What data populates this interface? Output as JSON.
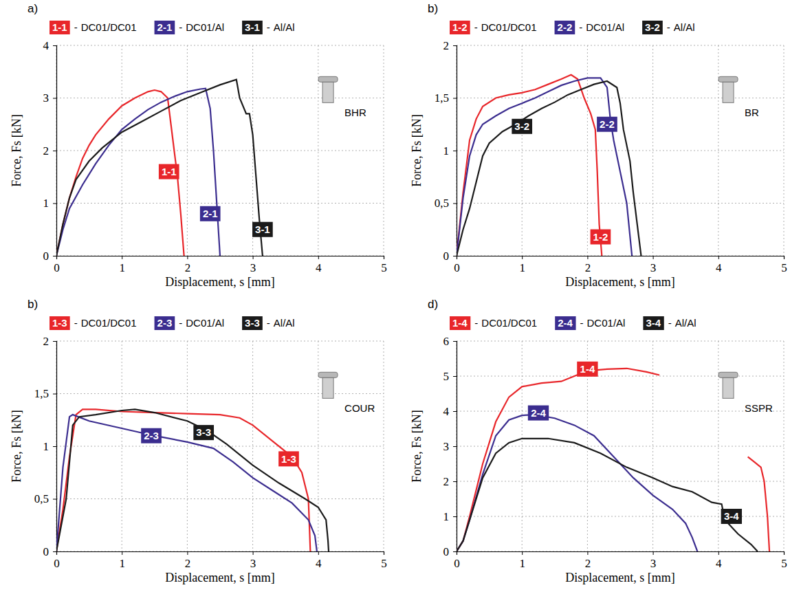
{
  "chart_data": [
    {
      "type": "line",
      "panel": "a)",
      "rivet": "BHR",
      "x_label": "Displacement, s [mm]",
      "y_label": "Force, Fs [kN]",
      "legend": "top",
      "legend_separator": "-",
      "grid": true,
      "xlim": [
        0,
        5
      ],
      "xticks": [
        0,
        1,
        2,
        3,
        4,
        5
      ],
      "ylim": [
        0,
        4
      ],
      "yticks": [
        0,
        1,
        2,
        3,
        4
      ],
      "series": [
        {
          "label": "1-1",
          "name": "DC01/DC01",
          "color": "#e8262a",
          "label_x": 1.72,
          "label_y": 1.6,
          "x": [
            0,
            0.1,
            0.2,
            0.3,
            0.4,
            0.5,
            0.6,
            0.8,
            1.0,
            1.2,
            1.4,
            1.5,
            1.6,
            1.7,
            1.75,
            1.8,
            1.85,
            1.9,
            1.95
          ],
          "values": [
            0,
            0.6,
            1.1,
            1.5,
            1.85,
            2.1,
            2.3,
            2.6,
            2.85,
            3.0,
            3.12,
            3.15,
            3.12,
            3.0,
            2.5,
            2.0,
            1.5,
            0.8,
            0
          ]
        },
        {
          "label": "2-1",
          "name": "DC01/Al",
          "color": "#3b2d8f",
          "label_x": 2.35,
          "label_y": 0.8,
          "x": [
            0,
            0.1,
            0.2,
            0.4,
            0.6,
            0.8,
            1.0,
            1.2,
            1.4,
            1.6,
            1.8,
            2.0,
            2.2,
            2.28,
            2.35,
            2.4,
            2.45,
            2.5
          ],
          "values": [
            0,
            0.5,
            0.9,
            1.35,
            1.75,
            2.1,
            2.4,
            2.6,
            2.78,
            2.92,
            3.03,
            3.12,
            3.17,
            3.18,
            2.8,
            2.0,
            1.0,
            0
          ]
        },
        {
          "label": "3-1",
          "name": "Al/Al",
          "color": "#1a1a1a",
          "label_x": 3.15,
          "label_y": 0.5,
          "x": [
            0,
            0.1,
            0.2,
            0.3,
            0.5,
            0.7,
            1.0,
            1.3,
            1.6,
            1.9,
            2.2,
            2.5,
            2.75,
            2.8,
            2.9,
            2.95,
            3.0,
            3.05,
            3.1,
            3.15
          ],
          "values": [
            0,
            0.6,
            1.1,
            1.45,
            1.8,
            2.05,
            2.35,
            2.55,
            2.75,
            2.95,
            3.1,
            3.25,
            3.35,
            3.0,
            2.7,
            2.7,
            2.3,
            1.5,
            0.7,
            0
          ]
        }
      ]
    },
    {
      "type": "line",
      "panel": "b)",
      "rivet": "BR",
      "x_label": "Displacement, s [mm]",
      "y_label": "Force, Fs [kN]",
      "legend": "top",
      "legend_separator": "-",
      "grid": true,
      "xlim": [
        0,
        5
      ],
      "xticks": [
        0,
        1,
        2,
        3,
        4,
        5
      ],
      "ylim": [
        0,
        2
      ],
      "yticks": [
        0,
        {
          "value": 0.5,
          "label": "0,5"
        },
        1,
        {
          "value": 1.5,
          "label": "1,5"
        },
        2
      ],
      "series": [
        {
          "label": "1-2",
          "name": "DC01/DC01",
          "color": "#e8262a",
          "label_x": 2.2,
          "label_y": 0.18,
          "x": [
            0,
            0.1,
            0.2,
            0.3,
            0.4,
            0.6,
            0.8,
            1.0,
            1.2,
            1.4,
            1.6,
            1.75,
            1.85,
            1.95,
            2.05,
            2.12,
            2.15,
            2.18,
            2.22
          ],
          "values": [
            0,
            0.6,
            1.1,
            1.3,
            1.42,
            1.5,
            1.53,
            1.55,
            1.58,
            1.63,
            1.68,
            1.72,
            1.68,
            1.5,
            1.35,
            1.2,
            0.8,
            0.3,
            0
          ]
        },
        {
          "label": "2-2",
          "name": "DC01/Al",
          "color": "#3b2d8f",
          "label_x": 2.3,
          "label_y": 1.25,
          "x": [
            0,
            0.1,
            0.2,
            0.3,
            0.4,
            0.6,
            0.8,
            1.0,
            1.2,
            1.4,
            1.6,
            1.8,
            2.0,
            2.2,
            2.3,
            2.35,
            2.4,
            2.5,
            2.6,
            2.68
          ],
          "values": [
            0,
            0.55,
            0.95,
            1.15,
            1.25,
            1.33,
            1.4,
            1.45,
            1.5,
            1.56,
            1.62,
            1.66,
            1.69,
            1.69,
            1.6,
            1.3,
            1.1,
            0.8,
            0.5,
            0
          ]
        },
        {
          "label": "3-2",
          "name": "Al/Al",
          "color": "#1a1a1a",
          "label_x": 1.0,
          "label_y": 1.23,
          "x": [
            0,
            0.1,
            0.2,
            0.3,
            0.4,
            0.5,
            0.7,
            0.9,
            1.1,
            1.3,
            1.5,
            1.7,
            1.9,
            2.1,
            2.3,
            2.45,
            2.5,
            2.55,
            2.65,
            2.7,
            2.78,
            2.82
          ],
          "values": [
            0,
            0.25,
            0.45,
            0.7,
            0.95,
            1.07,
            1.18,
            1.25,
            1.33,
            1.4,
            1.46,
            1.53,
            1.58,
            1.63,
            1.66,
            1.6,
            1.45,
            1.2,
            0.9,
            0.6,
            0.2,
            0
          ]
        }
      ]
    },
    {
      "type": "line",
      "panel": "b)",
      "rivet": "COUR",
      "x_label": "Displacement, s [mm]",
      "y_label": "Force, Fs [kN]",
      "legend": "top",
      "legend_separator": "-",
      "grid": true,
      "xlim": [
        0,
        5
      ],
      "xticks": [
        0,
        1,
        2,
        3,
        4,
        5
      ],
      "ylim": [
        0,
        2
      ],
      "yticks": [
        0,
        {
          "value": 0.5,
          "label": "0,5"
        },
        1,
        {
          "value": 1.5,
          "label": "1,5"
        },
        2
      ],
      "series": [
        {
          "label": "1-3",
          "name": "DC01/DC01",
          "color": "#e8262a",
          "label_x": 3.55,
          "label_y": 0.88,
          "x": [
            0,
            0.1,
            0.2,
            0.3,
            0.4,
            0.6,
            1.0,
            1.5,
            2.0,
            2.5,
            2.8,
            3.0,
            3.3,
            3.6,
            3.75,
            3.85,
            3.88
          ],
          "values": [
            0,
            0.4,
            0.9,
            1.3,
            1.35,
            1.35,
            1.33,
            1.32,
            1.31,
            1.3,
            1.27,
            1.2,
            1.05,
            0.9,
            0.75,
            0.5,
            0
          ]
        },
        {
          "label": "2-3",
          "name": "DC01/Al",
          "color": "#3b2d8f",
          "label_x": 1.45,
          "label_y": 1.1,
          "x": [
            0,
            0.1,
            0.2,
            0.25,
            0.5,
            1.0,
            1.5,
            2.0,
            2.4,
            2.7,
            3.0,
            3.3,
            3.6,
            3.85,
            3.95,
            3.98
          ],
          "values": [
            0,
            0.8,
            1.28,
            1.3,
            1.24,
            1.17,
            1.1,
            1.04,
            0.98,
            0.85,
            0.7,
            0.58,
            0.46,
            0.3,
            0.15,
            0
          ]
        },
        {
          "label": "3-3",
          "name": "Al/Al",
          "color": "#1a1a1a",
          "label_x": 2.25,
          "label_y": 1.13,
          "x": [
            0,
            0.15,
            0.25,
            0.35,
            0.6,
            1.0,
            1.2,
            1.5,
            2.0,
            2.3,
            2.6,
            3.0,
            3.4,
            3.8,
            4.0,
            4.12,
            4.15,
            4.16
          ],
          "values": [
            0,
            0.5,
            1.2,
            1.28,
            1.3,
            1.34,
            1.35,
            1.32,
            1.24,
            1.15,
            1.02,
            0.82,
            0.65,
            0.5,
            0.42,
            0.3,
            0.1,
            0
          ]
        }
      ]
    },
    {
      "type": "line",
      "panel": "d)",
      "rivet": "SSPR",
      "x_label": "Displacement, s [mm]",
      "y_label": "Force, Fs [kN]",
      "legend": "top",
      "legend_separator": "-",
      "grid": true,
      "xlim": [
        0,
        5
      ],
      "xticks": [
        0,
        1,
        2,
        3,
        4,
        5
      ],
      "ylim": [
        0,
        6
      ],
      "yticks": [
        0,
        1,
        2,
        3,
        4,
        5,
        6
      ],
      "series": [
        {
          "label": "1-4",
          "name": "DC01/DC01",
          "color": "#e8262a",
          "label_x": 2.0,
          "label_y": 5.2,
          "x": [
            0,
            0.1,
            0.2,
            0.4,
            0.6,
            0.8,
            1.0,
            1.3,
            1.6,
            1.8,
            2.0,
            2.3,
            2.6,
            2.9,
            3.1,
            3.8,
            4.45,
            4.55,
            4.65,
            4.7,
            4.75,
            4.78
          ],
          "values": [
            0,
            0.3,
            1.0,
            2.5,
            3.7,
            4.4,
            4.7,
            4.8,
            4.85,
            5.0,
            5.15,
            5.2,
            5.22,
            5.12,
            5.03,
            null,
            2.7,
            2.55,
            2.4,
            2.0,
            1.0,
            0
          ]
        },
        {
          "label": "2-4",
          "name": "DC01/Al",
          "color": "#3b2d8f",
          "label_x": 1.25,
          "label_y": 3.95,
          "x": [
            0,
            0.1,
            0.2,
            0.4,
            0.6,
            0.8,
            1.0,
            1.2,
            1.5,
            1.8,
            2.1,
            2.4,
            2.7,
            3.0,
            3.3,
            3.5,
            3.6,
            3.68
          ],
          "values": [
            0,
            0.3,
            0.9,
            2.2,
            3.3,
            3.75,
            3.88,
            3.9,
            3.8,
            3.6,
            3.3,
            2.7,
            2.1,
            1.6,
            1.2,
            0.8,
            0.4,
            0
          ]
        },
        {
          "label": "3-4",
          "name": "Al/Al",
          "color": "#1a1a1a",
          "label_x": 4.2,
          "label_y": 1.0,
          "x": [
            0,
            0.1,
            0.2,
            0.4,
            0.6,
            0.8,
            1.0,
            1.4,
            1.8,
            2.2,
            2.6,
            3.0,
            3.3,
            3.6,
            3.9,
            4.05,
            4.1,
            4.3,
            4.5,
            4.6
          ],
          "values": [
            0,
            0.3,
            0.9,
            2.1,
            2.8,
            3.1,
            3.22,
            3.22,
            3.1,
            2.8,
            2.4,
            2.1,
            1.85,
            1.7,
            1.4,
            1.35,
            0.9,
            0.5,
            0.2,
            0
          ]
        }
      ]
    }
  ]
}
